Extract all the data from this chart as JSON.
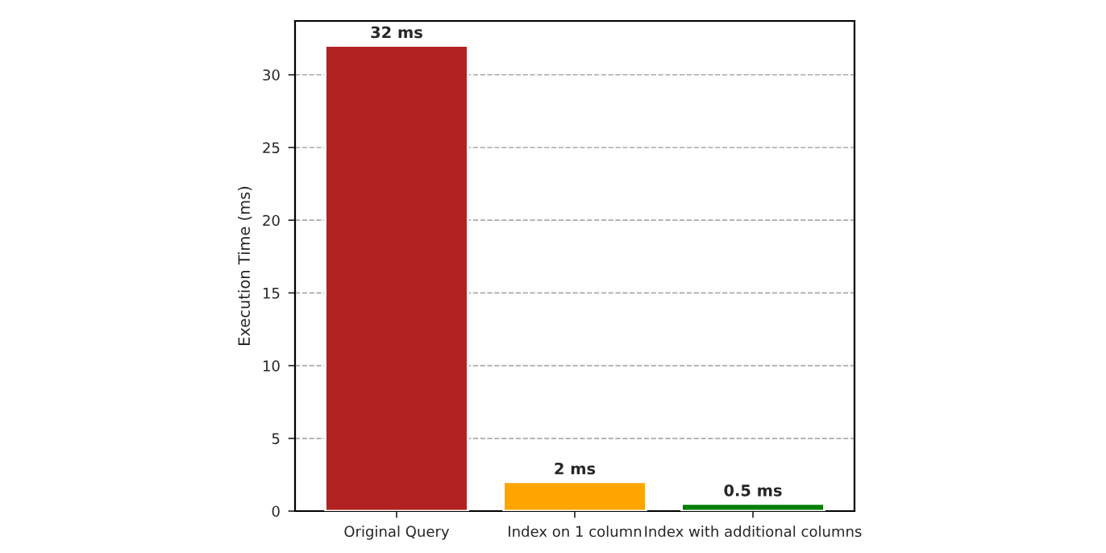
{
  "chart_data": {
    "type": "bar",
    "ylabel": "Execution Time (ms)",
    "categories": [
      "Original Query",
      "Index on 1 column",
      "Index with additional columns"
    ],
    "values": [
      32,
      2,
      0.5
    ],
    "colors": [
      "#b22222",
      "#ffa500",
      "#008000"
    ],
    "value_labels": [
      "32 ms",
      "2 ms",
      "0.5 ms"
    ],
    "ylim": [
      0,
      33.7
    ],
    "yticks": [
      0,
      5,
      10,
      15,
      20,
      25,
      30
    ],
    "grid": "y"
  }
}
